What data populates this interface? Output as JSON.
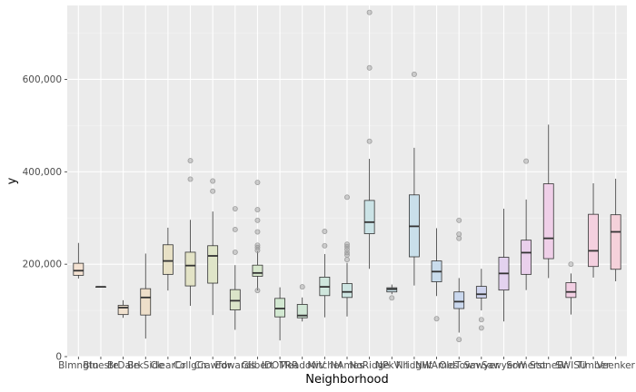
{
  "chart_data": {
    "type": "boxplot",
    "title": "",
    "xlabel": "Neighborhood",
    "ylabel": "y",
    "ylim": [
      0,
      760000
    ],
    "yticks": [
      0,
      200000,
      400000,
      600000
    ],
    "ytick_labels": [
      "0",
      "200,000",
      "400,000",
      "600,000"
    ],
    "grid": true,
    "legend": "none",
    "colors": {
      "panel_bg": "#ebebeb",
      "grid_major": "#ffffff",
      "grid_minor": "#f4f4f4",
      "box_outline": "#333333",
      "outlier": "#999999"
    },
    "series": [
      {
        "category": "Blmngtn",
        "q1": 176000,
        "median": 186000,
        "q3": 202000,
        "whisker_low": 169000,
        "whisker_high": 246000,
        "outliers": [],
        "fill": "#f4e2d2"
      },
      {
        "category": "Blueste",
        "q1": 151000,
        "median": 151000,
        "q3": 151000,
        "whisker_low": 151000,
        "whisker_high": 151000,
        "outliers": [],
        "fill": "#f2e0d4"
      },
      {
        "category": "BrDale",
        "q1": 91000,
        "median": 106000,
        "q3": 111000,
        "whisker_low": 84000,
        "whisker_high": 122000,
        "outliers": [],
        "fill": "#f0e1cf"
      },
      {
        "category": "BrkSide",
        "q1": 90000,
        "median": 128000,
        "q3": 147000,
        "whisker_low": 39000,
        "whisker_high": 223000,
        "outliers": [],
        "fill": "#eedfca"
      },
      {
        "category": "ClearCr",
        "q1": 178000,
        "median": 207000,
        "q3": 242000,
        "whisker_low": 143000,
        "whisker_high": 279000,
        "outliers": [],
        "fill": "#e8e1c6"
      },
      {
        "category": "CollgCr",
        "q1": 153000,
        "median": 197000,
        "q3": 226000,
        "whisker_low": 110000,
        "whisker_high": 296000,
        "outliers": [
          384000,
          424000
        ],
        "fill": "#e3e3c6"
      },
      {
        "category": "Crawfor",
        "q1": 159000,
        "median": 218000,
        "q3": 240000,
        "whisker_low": 90000,
        "whisker_high": 314000,
        "outliers": [
          358000,
          380000
        ],
        "fill": "#dfe5c8"
      },
      {
        "category": "Edwards",
        "q1": 101000,
        "median": 121000,
        "q3": 145000,
        "whisker_low": 58000,
        "whisker_high": 198000,
        "outliers": [
          226000,
          275000,
          320000
        ],
        "fill": "#dbe5c9"
      },
      {
        "category": "Gilbert",
        "q1": 174000,
        "median": 181000,
        "q3": 198000,
        "whisker_low": 143000,
        "whisker_high": 228000,
        "outliers": [
          143000,
          230000,
          236000,
          241000,
          270000,
          295000,
          318000,
          377000
        ],
        "fill": "#d6e6cc"
      },
      {
        "category": "IDOTRR",
        "q1": 86000,
        "median": 104000,
        "q3": 126000,
        "whisker_low": 35000,
        "whisker_high": 150000,
        "outliers": [],
        "fill": "#d2e8d1"
      },
      {
        "category": "MeadowV",
        "q1": 84000,
        "median": 89000,
        "q3": 113000,
        "whisker_low": 76000,
        "whisker_high": 128000,
        "outliers": [
          151000
        ],
        "fill": "#d1e7d6"
      },
      {
        "category": "Mitchel",
        "q1": 132000,
        "median": 151000,
        "q3": 172000,
        "whisker_low": 85000,
        "whisker_high": 222000,
        "outliers": [
          240000,
          271000
        ],
        "fill": "#cfe6dc"
      },
      {
        "category": "NAmes",
        "q1": 128000,
        "median": 140000,
        "q3": 158000,
        "whisker_low": 87000,
        "whisker_high": 203000,
        "outliers": [
          210000,
          220000,
          225000,
          232000,
          238000,
          243000,
          345000
        ],
        "fill": "#cde5e2"
      },
      {
        "category": "NoRidge",
        "q1": 266000,
        "median": 291000,
        "q3": 338000,
        "whisker_low": 190000,
        "whisker_high": 428000,
        "outliers": [
          466000,
          625000,
          745000
        ],
        "fill": "#cbe3e6"
      },
      {
        "category": "NPkVill",
        "q1": 140000,
        "median": 146000,
        "q3": 149000,
        "whisker_low": 135000,
        "whisker_high": 156000,
        "outliers": [
          127000
        ],
        "fill": "#cae1e8"
      },
      {
        "category": "NridgHt",
        "q1": 216000,
        "median": 282000,
        "q3": 350000,
        "whisker_low": 154000,
        "whisker_high": 452000,
        "outliers": [
          611000
        ],
        "fill": "#c9dfea"
      },
      {
        "category": "NWAmes",
        "q1": 162000,
        "median": 184000,
        "q3": 207000,
        "whisker_low": 131000,
        "whisker_high": 278000,
        "outliers": [
          82000
        ],
        "fill": "#c9dcec"
      },
      {
        "category": "OldTown",
        "q1": 104000,
        "median": 119000,
        "q3": 140000,
        "whisker_low": 52000,
        "whisker_high": 170000,
        "outliers": [
          37000,
          256000,
          265000,
          295000
        ],
        "fill": "#cad8ee"
      },
      {
        "category": "Sawyer",
        "q1": 127000,
        "median": 135000,
        "q3": 152000,
        "whisker_low": 100000,
        "whisker_high": 190000,
        "outliers": [
          62000,
          80000
        ],
        "fill": "#cfd4ee"
      },
      {
        "category": "SawyerW",
        "q1": 144000,
        "median": 180000,
        "q3": 215000,
        "whisker_low": 76000,
        "whisker_high": 320000,
        "outliers": [],
        "fill": "#e3d2ef"
      },
      {
        "category": "Somerst",
        "q1": 178000,
        "median": 225000,
        "q3": 252000,
        "whisker_low": 144000,
        "whisker_high": 340000,
        "outliers": [
          423000
        ],
        "fill": "#ead0ec"
      },
      {
        "category": "StoneBr",
        "q1": 212000,
        "median": 256000,
        "q3": 374000,
        "whisker_low": 170000,
        "whisker_high": 502000,
        "outliers": [],
        "fill": "#efcfe8"
      },
      {
        "category": "SWISU",
        "q1": 128000,
        "median": 140000,
        "q3": 160000,
        "whisker_low": 91000,
        "whisker_high": 180000,
        "outliers": [
          200000
        ],
        "fill": "#f2cfe3"
      },
      {
        "category": "Timber",
        "q1": 195000,
        "median": 229000,
        "q3": 308000,
        "whisker_low": 171000,
        "whisker_high": 375000,
        "outliers": [],
        "fill": "#f4d0df"
      },
      {
        "category": "Veenker",
        "q1": 189000,
        "median": 270000,
        "q3": 307000,
        "whisker_low": 163000,
        "whisker_high": 385000,
        "outliers": [],
        "fill": "#f5d1da"
      }
    ]
  }
}
